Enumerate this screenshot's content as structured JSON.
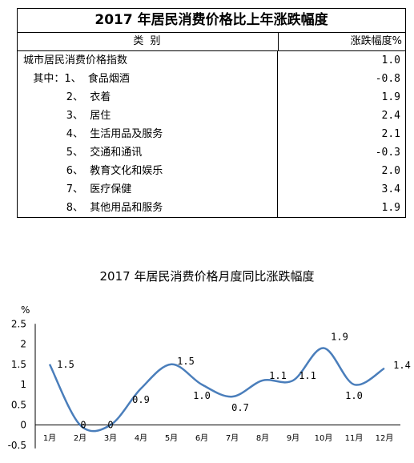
{
  "table": {
    "title": "2017 年居民消费价格比上年涨跌幅度",
    "col_category": "类    别",
    "col_value": "涨跌幅度%",
    "rows": [
      {
        "name": "城市居民消费价格指数",
        "value": "1.0"
      },
      {
        "name": "   其中：1、  食品烟酒",
        "value": "-0.8"
      },
      {
        "name": "             2、  衣着",
        "value": "1.9"
      },
      {
        "name": "             3、  居住",
        "value": "2.4"
      },
      {
        "name": "             4、  生活用品及服务",
        "value": "2.1"
      },
      {
        "name": "             5、  交通和通讯",
        "value": "-0.3"
      },
      {
        "name": "             6、  教育文化和娱乐",
        "value": "2.0"
      },
      {
        "name": "             7、  医疗保健",
        "value": "3.4"
      },
      {
        "name": "             8、  其他用品和服务",
        "value": "1.9"
      }
    ]
  },
  "chart_data": {
    "type": "line",
    "title": "2017 年居民消费价格月度同比涨跌幅度",
    "ylabel": "%",
    "ylim": [
      -0.5,
      2.5
    ],
    "yticks": [
      "2.5",
      "2",
      "1.5",
      "1",
      "0.5",
      "0",
      "-0.5"
    ],
    "categories": [
      "1月",
      "2月",
      "3月",
      "4月",
      "5月",
      "6月",
      "7月",
      "8月",
      "9月",
      "10月",
      "11月",
      "12月"
    ],
    "series": [
      {
        "values": [
          1.5,
          0,
          0,
          0.9,
          1.5,
          1.0,
          0.7,
          1.1,
          1.1,
          1.9,
          1.0,
          1.4
        ],
        "labels": [
          "1.5",
          "0",
          "0",
          "0.9",
          "1.5",
          "1.0",
          "0.7",
          "1.1",
          "1.1",
          "1.9",
          "1.0",
          "1.4"
        ]
      }
    ],
    "line_color": "#4a7ebb",
    "grid": false
  }
}
